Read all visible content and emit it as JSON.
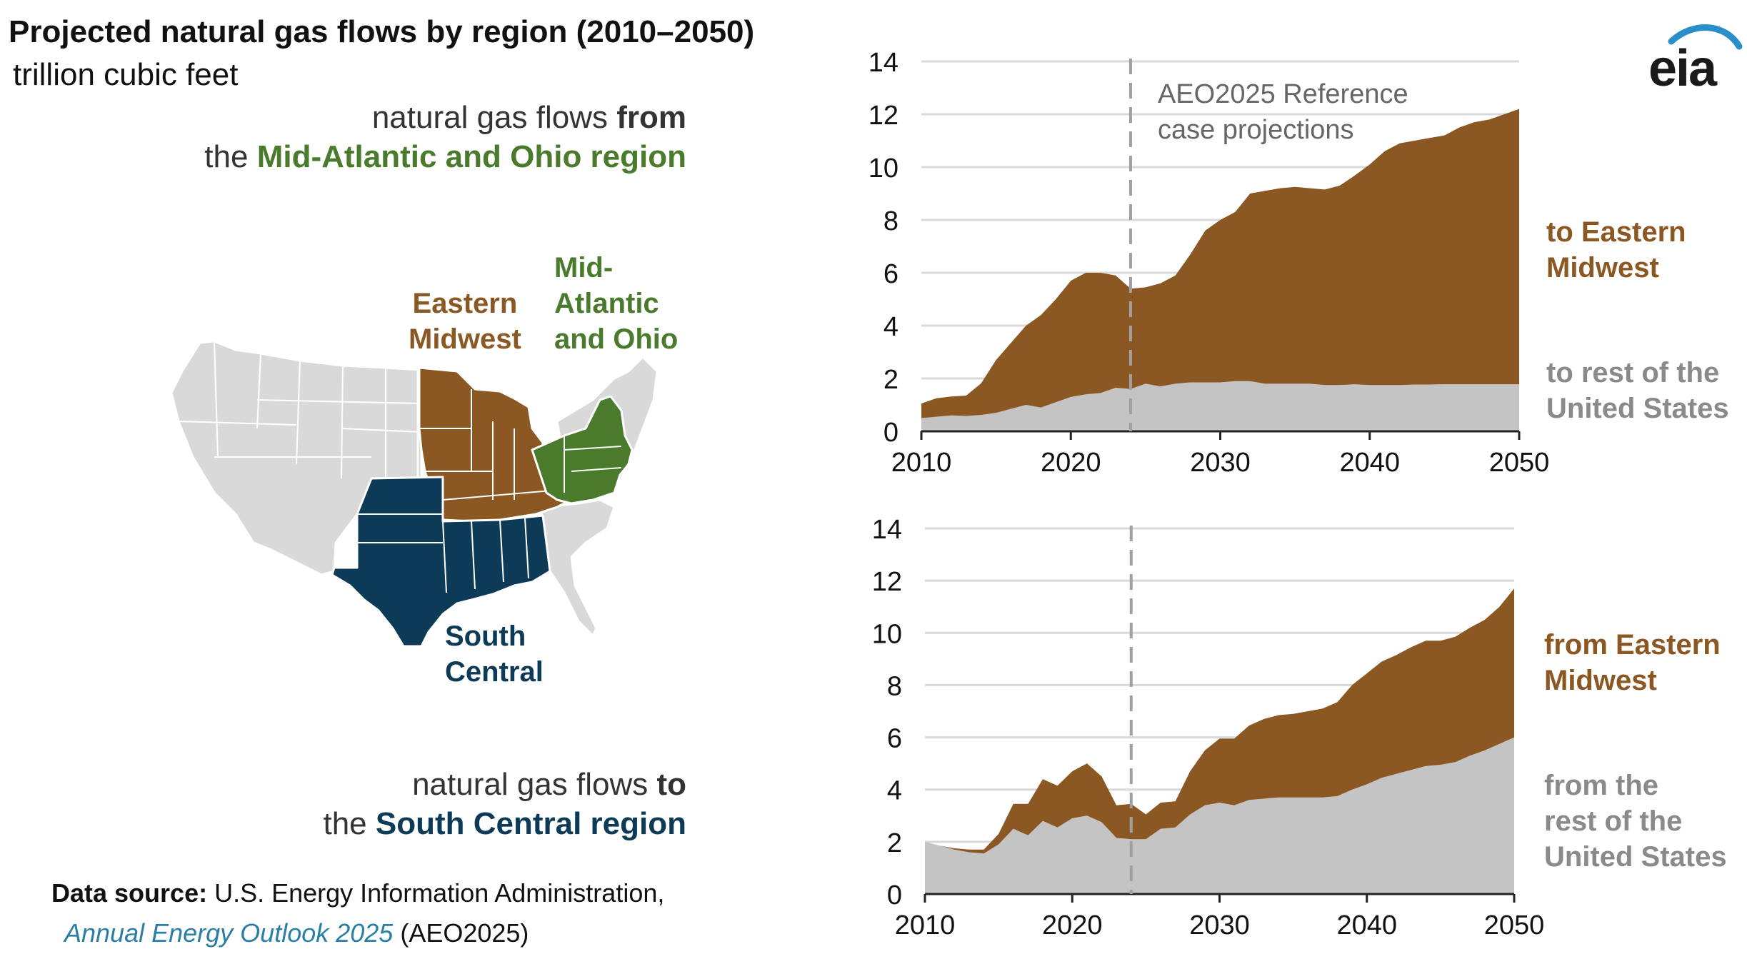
{
  "title": "Projected natural gas flows by region (2010–2050)",
  "units": "trillion cubic feet",
  "flows_from_heading": {
    "line1_pre": "natural gas flows ",
    "line1_em": "from",
    "line2_pre": "the ",
    "line2_em": "Mid-Atlantic and Ohio region"
  },
  "flows_to_heading": {
    "line1_pre": "natural gas flows ",
    "line1_em": "to",
    "line2_pre": "the ",
    "line2_em": "South Central region"
  },
  "map_labels": {
    "eastern_midwest": [
      "Eastern",
      "Midwest"
    ],
    "mid_atlantic": [
      "Mid-",
      "Atlantic",
      "and Ohio"
    ],
    "south_central": [
      "South",
      "Central"
    ]
  },
  "source": {
    "lead": "Data source:",
    "text1": " U.S. Energy Information Administration,",
    "italic": "Annual Energy Outlook 2025",
    "text2": " (AEO2025)"
  },
  "logo_text": "eia",
  "colors": {
    "brown": "#8b5722",
    "grey": "#c4c4c4",
    "green": "#4a7a2c",
    "navy": "#0c3a57",
    "map_other": "#d9d9d9",
    "gridline": "#d9d9d9"
  },
  "chart_data": [
    {
      "type": "area",
      "stacked": true,
      "x": [
        2010,
        2011,
        2012,
        2013,
        2014,
        2015,
        2016,
        2017,
        2018,
        2019,
        2020,
        2021,
        2022,
        2023,
        2024,
        2025,
        2026,
        2027,
        2028,
        2029,
        2030,
        2031,
        2032,
        2033,
        2034,
        2035,
        2036,
        2037,
        2038,
        2039,
        2040,
        2041,
        2042,
        2043,
        2044,
        2045,
        2046,
        2047,
        2048,
        2049,
        2050
      ],
      "series": [
        {
          "name": "to rest of the United States",
          "color": "#c4c4c4",
          "values": [
            0.5,
            0.55,
            0.6,
            0.58,
            0.62,
            0.7,
            0.85,
            1.0,
            0.9,
            1.1,
            1.3,
            1.4,
            1.45,
            1.65,
            1.6,
            1.8,
            1.7,
            1.8,
            1.85,
            1.85,
            1.85,
            1.9,
            1.9,
            1.8,
            1.8,
            1.8,
            1.8,
            1.75,
            1.75,
            1.78,
            1.75,
            1.75,
            1.75,
            1.77,
            1.77,
            1.78,
            1.78,
            1.78,
            1.78,
            1.78,
            1.78
          ]
        },
        {
          "name": "to Eastern Midwest",
          "color": "#8b5722",
          "values": [
            0.55,
            0.7,
            0.72,
            0.77,
            1.2,
            2.0,
            2.5,
            3.0,
            3.5,
            3.9,
            4.4,
            4.6,
            4.55,
            4.25,
            3.8,
            3.65,
            3.9,
            4.1,
            4.85,
            5.75,
            6.15,
            6.4,
            7.1,
            7.3,
            7.4,
            7.45,
            7.4,
            7.4,
            7.55,
            7.9,
            8.35,
            8.85,
            9.15,
            9.23,
            9.33,
            9.42,
            9.72,
            9.92,
            10.02,
            10.22,
            10.42
          ]
        }
      ],
      "xlim": [
        2010,
        2050
      ],
      "ylim": [
        0,
        14
      ],
      "xticks": [
        2010,
        2020,
        2030,
        2040,
        2050
      ],
      "yticks": [
        0,
        2,
        4,
        6,
        8,
        10,
        12,
        14
      ],
      "projection_start": 2024,
      "annotation": [
        "AEO2025 Reference",
        "case projections"
      ],
      "series_labels": {
        "top": [
          "to Eastern",
          "Midwest"
        ],
        "bottom": [
          "to rest of the",
          "United States"
        ]
      },
      "grid": true
    },
    {
      "type": "area",
      "stacked": true,
      "x": [
        2010,
        2011,
        2012,
        2013,
        2014,
        2015,
        2016,
        2017,
        2018,
        2019,
        2020,
        2021,
        2022,
        2023,
        2024,
        2025,
        2026,
        2027,
        2028,
        2029,
        2030,
        2031,
        2032,
        2033,
        2034,
        2035,
        2036,
        2037,
        2038,
        2039,
        2040,
        2041,
        2042,
        2043,
        2044,
        2045,
        2046,
        2047,
        2048,
        2049,
        2050
      ],
      "series": [
        {
          "name": "from the rest of the United States",
          "color": "#c4c4c4",
          "values": [
            2.0,
            1.85,
            1.7,
            1.6,
            1.55,
            1.9,
            2.5,
            2.25,
            2.8,
            2.55,
            2.9,
            3.0,
            2.75,
            2.15,
            2.1,
            2.1,
            2.5,
            2.55,
            3.05,
            3.4,
            3.5,
            3.4,
            3.6,
            3.65,
            3.7,
            3.7,
            3.7,
            3.7,
            3.75,
            4.0,
            4.2,
            4.45,
            4.6,
            4.75,
            4.9,
            4.95,
            5.05,
            5.3,
            5.5,
            5.75,
            6.0
          ]
        },
        {
          "name": "from Eastern Midwest",
          "color": "#8b5722",
          "values": [
            0.0,
            0.0,
            0.05,
            0.1,
            0.15,
            0.4,
            0.95,
            1.2,
            1.6,
            1.6,
            1.8,
            2.0,
            1.75,
            1.25,
            1.35,
            0.95,
            1.0,
            1.0,
            1.65,
            2.1,
            2.45,
            2.55,
            2.85,
            3.05,
            3.15,
            3.2,
            3.3,
            3.4,
            3.6,
            4.0,
            4.25,
            4.45,
            4.55,
            4.7,
            4.8,
            4.75,
            4.8,
            4.9,
            5.0,
            5.25,
            5.7
          ]
        }
      ],
      "xlim": [
        2010,
        2050
      ],
      "ylim": [
        0,
        14
      ],
      "xticks": [
        2010,
        2020,
        2030,
        2040,
        2050
      ],
      "yticks": [
        0,
        2,
        4,
        6,
        8,
        10,
        12,
        14
      ],
      "projection_start": 2024,
      "series_labels": {
        "top": [
          "from Eastern",
          "Midwest"
        ],
        "bottom": [
          "from the",
          "rest of the",
          "United States"
        ]
      },
      "grid": true
    }
  ]
}
